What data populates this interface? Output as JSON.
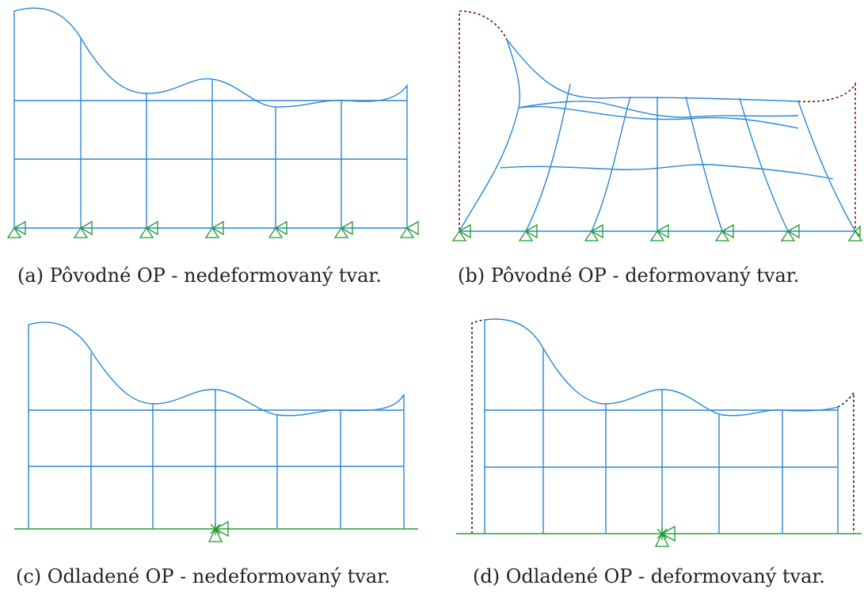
{
  "colors": {
    "mesh": "#2a86d6",
    "support": "#1e9a2e",
    "deformed_outline_b": "#6b1212",
    "deformed_outline_d": "#222222"
  },
  "panels": [
    {
      "id": "a",
      "caption": "(a) Pôvodné OP - nedeformovaný tvar."
    },
    {
      "id": "b",
      "caption": "(b) Pôvodné OP - deformovaný tvar."
    },
    {
      "id": "c",
      "caption": "(c) Odladené OP - nedeformovaný tvar."
    },
    {
      "id": "d",
      "caption": "(d) Odladené OP - deformovaný tvar."
    }
  ]
}
